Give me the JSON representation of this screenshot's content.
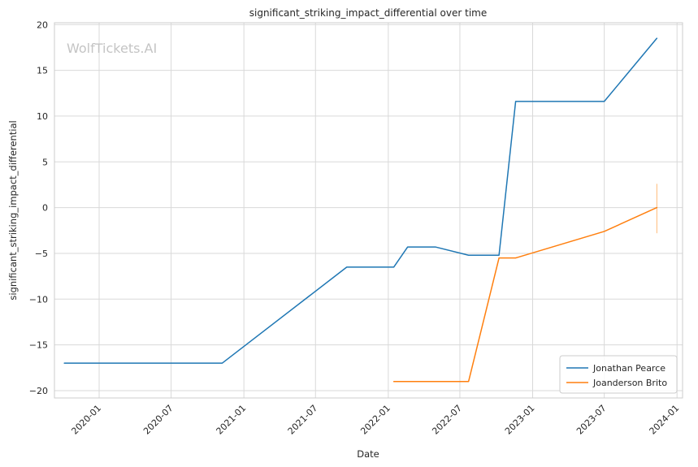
{
  "chart_data": {
    "type": "line",
    "title": "significant_striking_impact_differential over time",
    "xlabel": "Date",
    "ylabel": "significant_striking_impact_differential",
    "watermark": "WolfTickets.AI",
    "xlim": [
      "2019-09-10",
      "2024-01-15"
    ],
    "ylim": [
      -20.8,
      20.2
    ],
    "x_ticks": [
      "2020-01-01",
      "2020-07-01",
      "2021-01-01",
      "2021-07-01",
      "2022-01-01",
      "2022-07-01",
      "2023-01-01",
      "2023-07-01",
      "2024-01-01"
    ],
    "x_tick_labels": [
      "2020-01",
      "2020-07",
      "2021-01",
      "2021-07",
      "2022-01",
      "2022-07",
      "2023-01",
      "2023-07",
      "2024-01"
    ],
    "y_ticks": [
      -20,
      -15,
      -10,
      -5,
      0,
      5,
      10,
      15,
      20
    ],
    "y_tick_labels": [
      "−20",
      "−15",
      "−10",
      "−5",
      "0",
      "5",
      "10",
      "15",
      "20"
    ],
    "grid": true,
    "legend_position": "bottom-right",
    "series": [
      {
        "name": "Jonathan Pearce",
        "color": "#1f77b4",
        "x": [
          "2019-10-05",
          "2020-11-07",
          "2021-09-18",
          "2022-01-15",
          "2022-02-19",
          "2022-04-30",
          "2022-07-23",
          "2022-10-08",
          "2022-11-19",
          "2023-07-01",
          "2023-11-11"
        ],
        "y": [
          -17.0,
          -17.0,
          -6.5,
          -6.5,
          -4.3,
          -4.3,
          -5.2,
          -5.2,
          11.6,
          11.6,
          18.5
        ]
      },
      {
        "name": "Joanderson Brito",
        "color": "#ff7f0e",
        "x": [
          "2022-01-15",
          "2022-07-23",
          "2022-10-08",
          "2022-11-19",
          "2023-07-01",
          "2023-11-11"
        ],
        "y": [
          -19.0,
          -19.0,
          -5.5,
          -5.5,
          -2.6,
          0.0
        ]
      }
    ],
    "error_bars": [
      {
        "series": "Joanderson Brito",
        "x": "2023-11-11",
        "y_low": -2.8,
        "y_high": 2.6,
        "color": "#ffbb78"
      }
    ]
  }
}
